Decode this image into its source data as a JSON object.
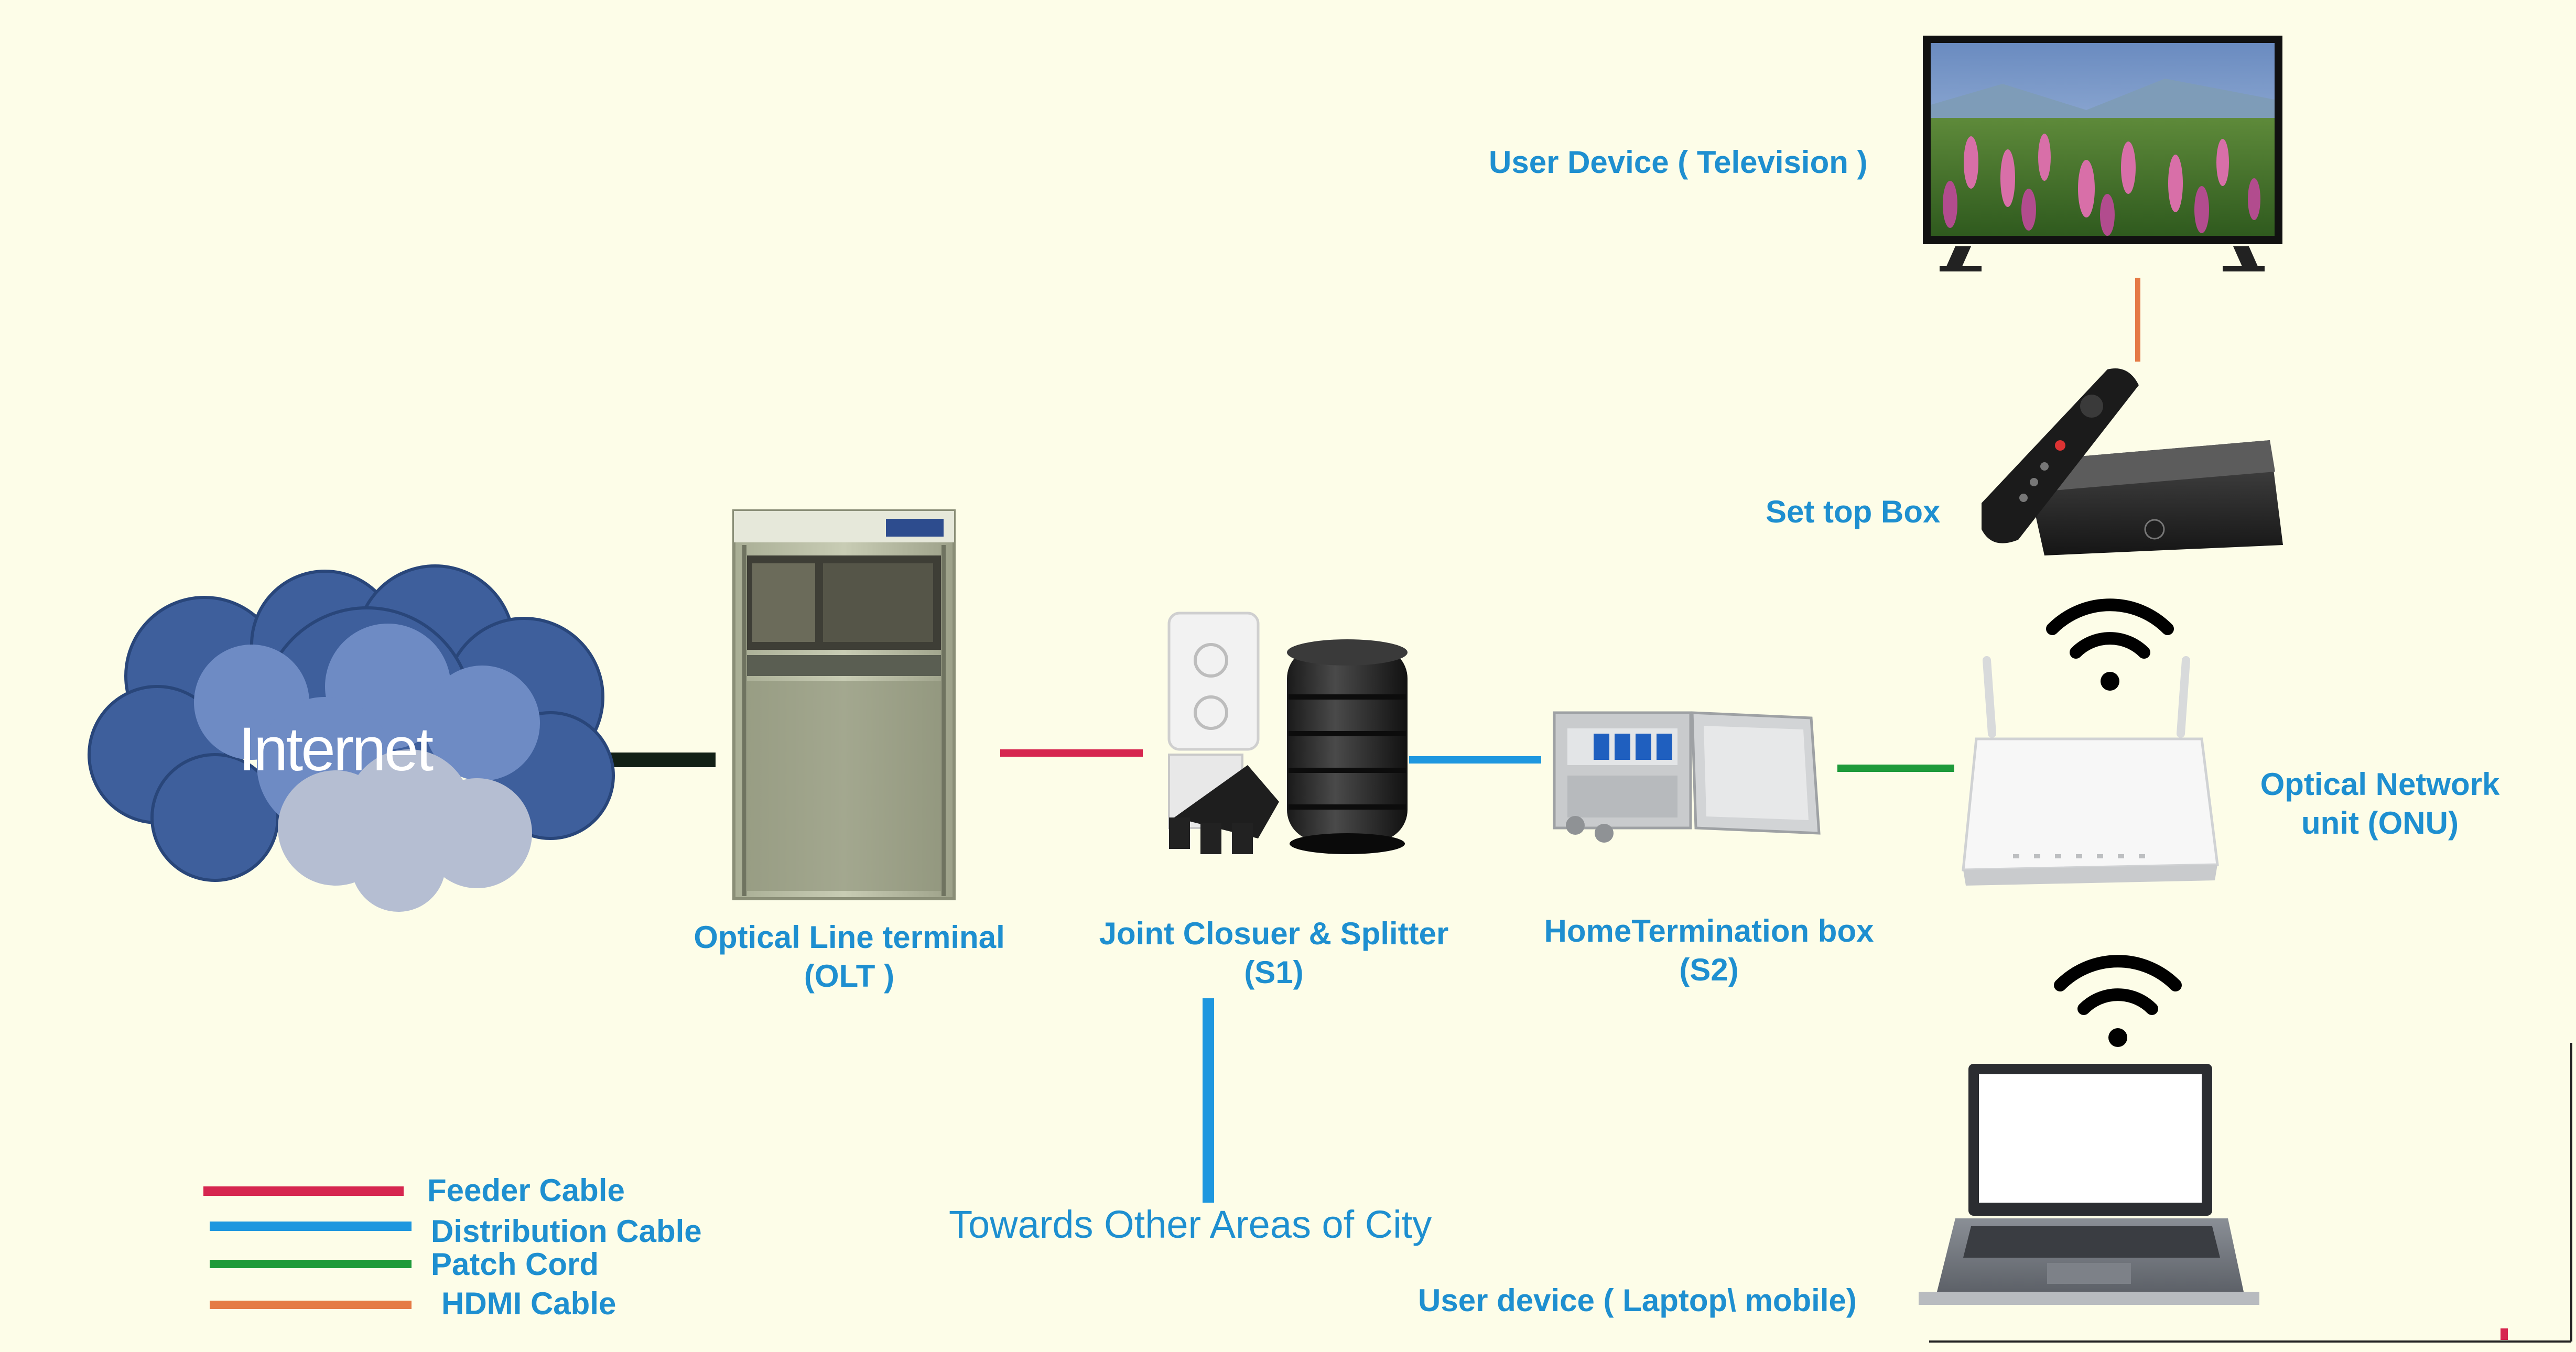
{
  "internet": {
    "label": "Internet"
  },
  "olt": {
    "label_line1": "Optical  Line terminal",
    "label_line2": "(OLT )"
  },
  "joint_closure": {
    "label_line1": "Joint Closuer & Splitter",
    "label_line2": "(S1)"
  },
  "home_termination": {
    "label_line1": "HomeTermination  box",
    "label_line2": "(S2)"
  },
  "onu": {
    "label_line1": "Optical Network",
    "label_line2": "unit (ONU)"
  },
  "set_top_box": {
    "label": "Set top Box"
  },
  "television": {
    "label": "User Device ( Television )"
  },
  "laptop": {
    "label": "User device ( Laptop\\ mobile)"
  },
  "branch": {
    "label": "Towards Other Areas of City"
  },
  "legend": [
    {
      "label": "Feeder Cable",
      "color": "#D6264F"
    },
    {
      "label": "Distribution Cable",
      "color": "#1E97DF"
    },
    {
      "label": "Patch Cord",
      "color": "#1E9A3A"
    },
    {
      "label": "HDMI Cable",
      "color": "#E57A45"
    }
  ],
  "colors": {
    "background": "#FDFDE8",
    "label_blue": "#1E8FD0",
    "internet_link": "#122016",
    "feeder": "#D6264F",
    "distribution": "#1E97DF",
    "patch": "#1E9A3A",
    "hdmi": "#E57A45"
  }
}
